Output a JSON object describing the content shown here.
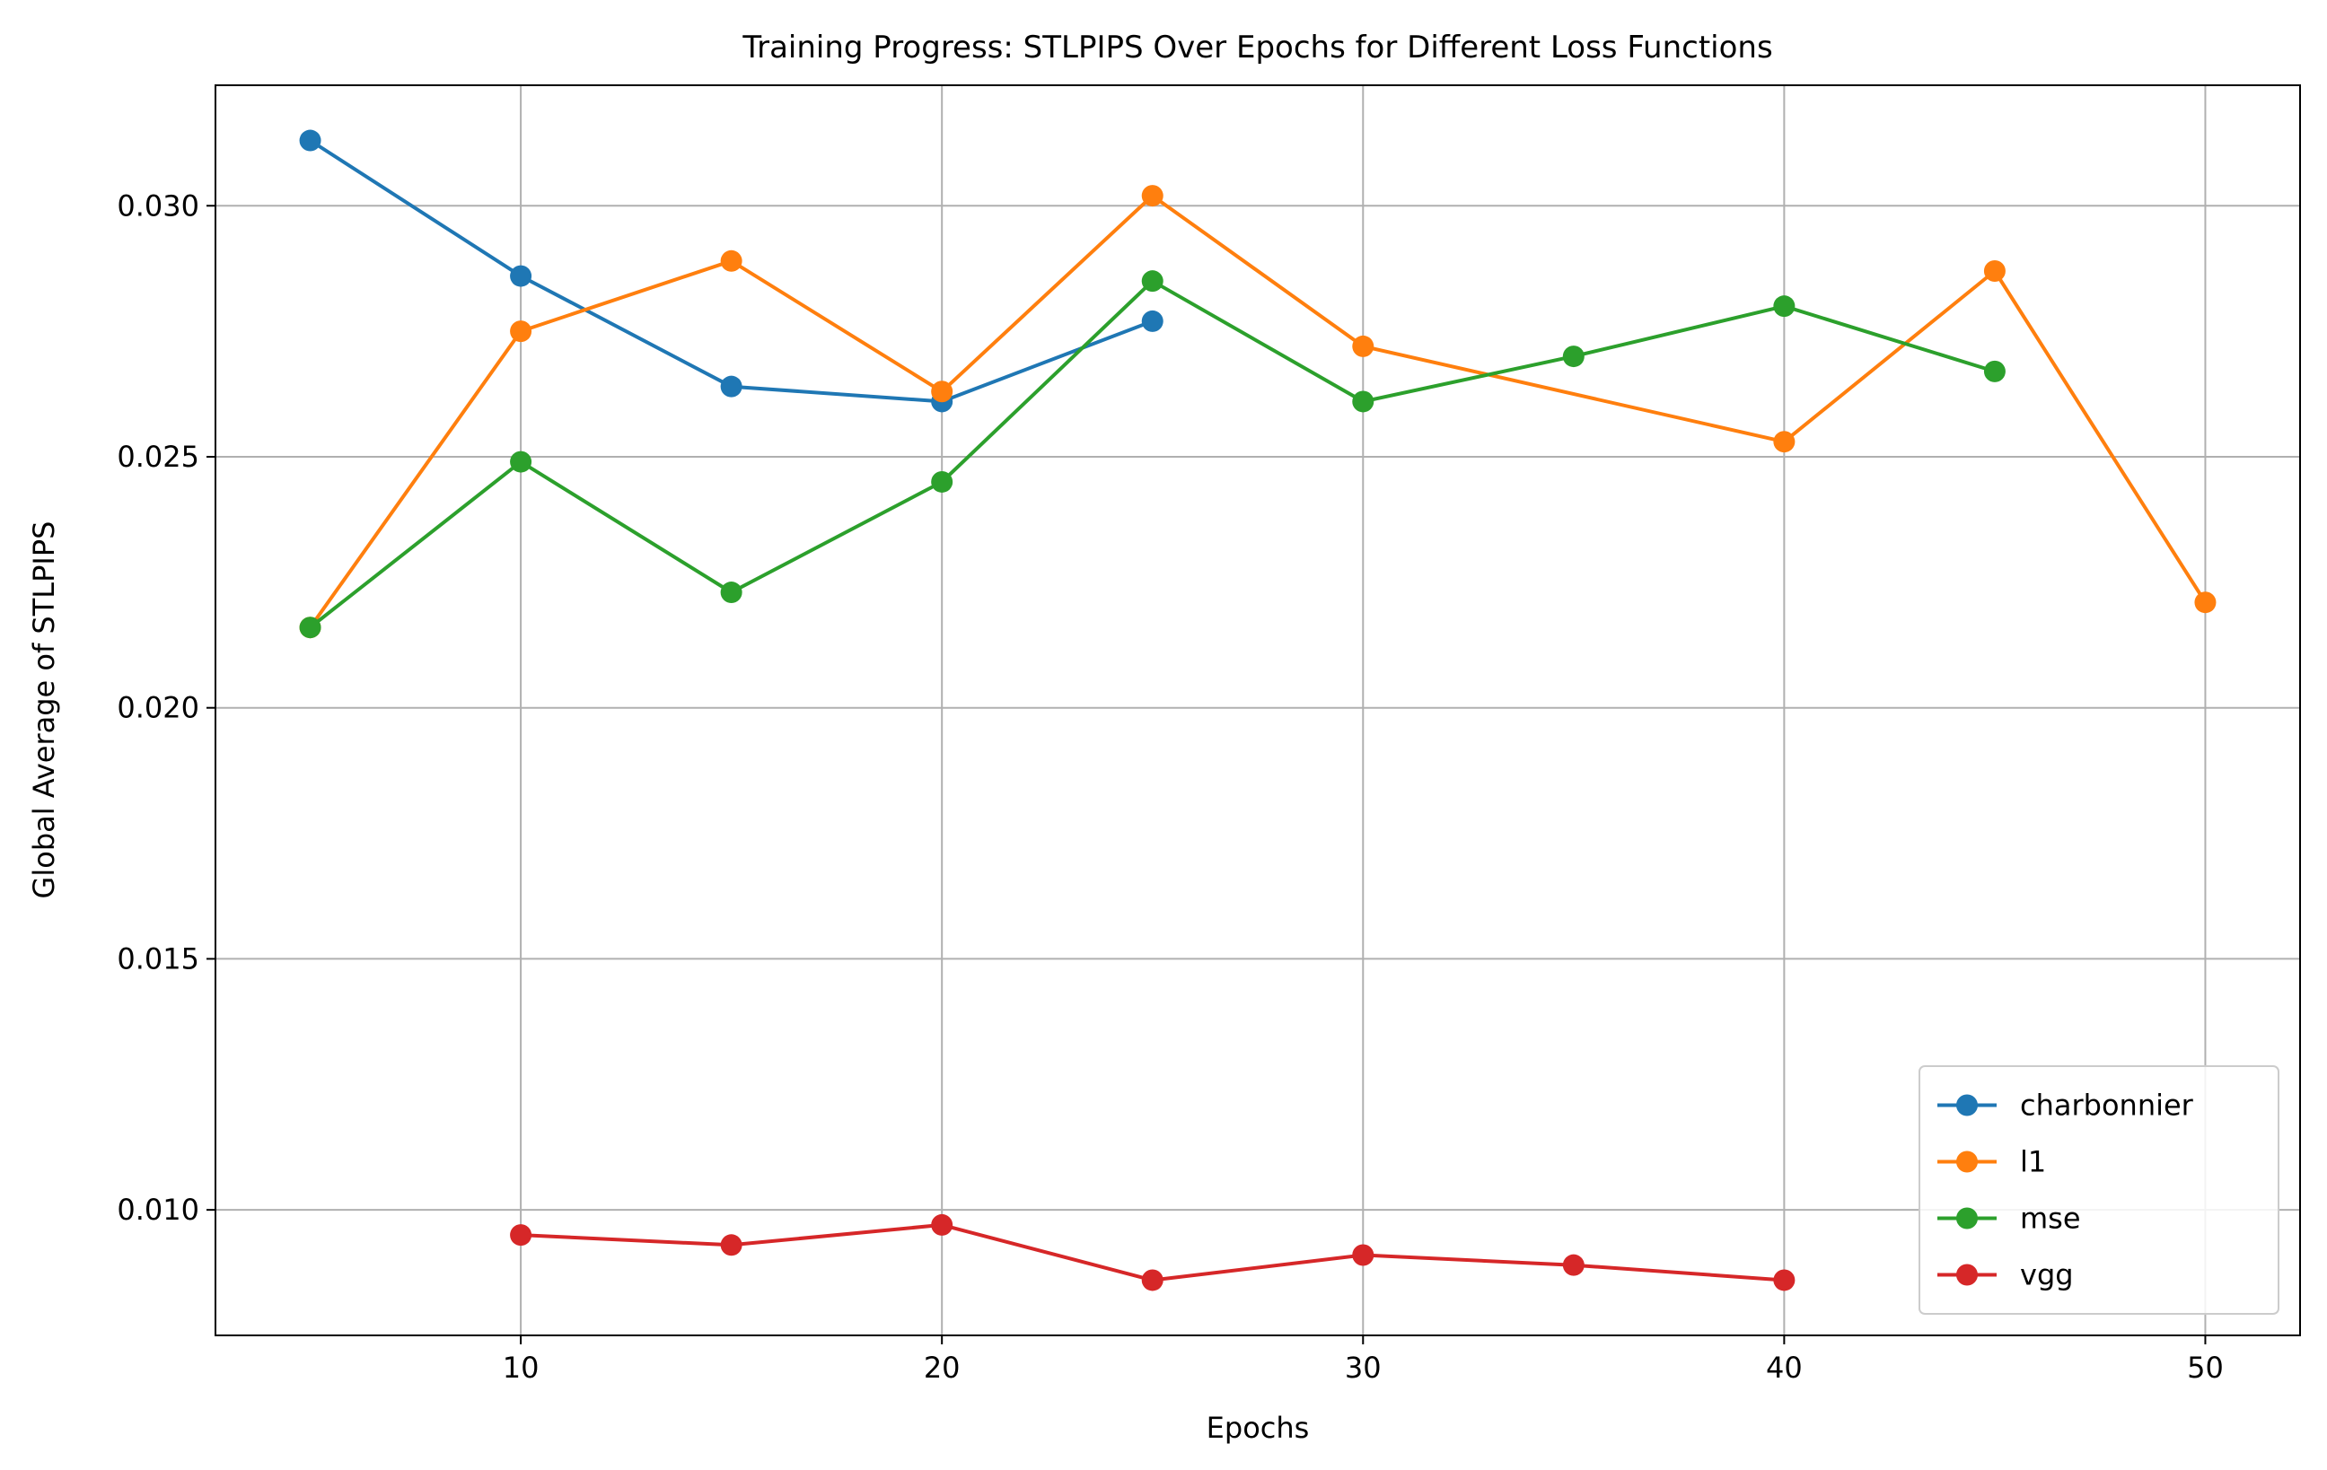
{
  "chart_data": {
    "type": "line",
    "title": "Training Progress: STLPIPS Over Epochs for Different Loss Functions",
    "xlabel": "Epochs",
    "ylabel": "Global Average of STLPIPS",
    "xlim": [
      2.75,
      52.25
    ],
    "ylim": [
      0.0075,
      0.0324
    ],
    "xticks": [
      10,
      20,
      30,
      40,
      50
    ],
    "xtick_labels": [
      "10",
      "20",
      "30",
      "40",
      "50"
    ],
    "yticks": [
      0.01,
      0.015,
      0.02,
      0.025,
      0.03
    ],
    "ytick_labels": [
      "0.010",
      "0.015",
      "0.020",
      "0.025",
      "0.030"
    ],
    "grid": true,
    "legend_position": "lower-right",
    "series": [
      {
        "name": "charbonnier",
        "color": "#1f77b4",
        "x": [
          5,
          10,
          15,
          20,
          25
        ],
        "y": [
          0.0313,
          0.0286,
          0.0264,
          0.0261,
          0.0277
        ]
      },
      {
        "name": "l1",
        "color": "#ff7f0e",
        "x": [
          5,
          10,
          15,
          20,
          25,
          30,
          40,
          45,
          50
        ],
        "y": [
          0.0216,
          0.0275,
          0.0289,
          0.0263,
          0.0302,
          0.0272,
          0.0253,
          0.0287,
          0.0221
        ]
      },
      {
        "name": "mse",
        "color": "#2ca02c",
        "x": [
          5,
          10,
          15,
          20,
          25,
          30,
          35,
          40,
          45
        ],
        "y": [
          0.0216,
          0.0249,
          0.0223,
          0.0245,
          0.0285,
          0.0261,
          0.027,
          0.028,
          0.0267
        ]
      },
      {
        "name": "vgg",
        "color": "#d62728",
        "x": [
          10,
          15,
          20,
          25,
          30,
          35,
          40
        ],
        "y": [
          0.0095,
          0.0093,
          0.0097,
          0.0086,
          0.0091,
          0.0089,
          0.0086
        ]
      }
    ]
  }
}
